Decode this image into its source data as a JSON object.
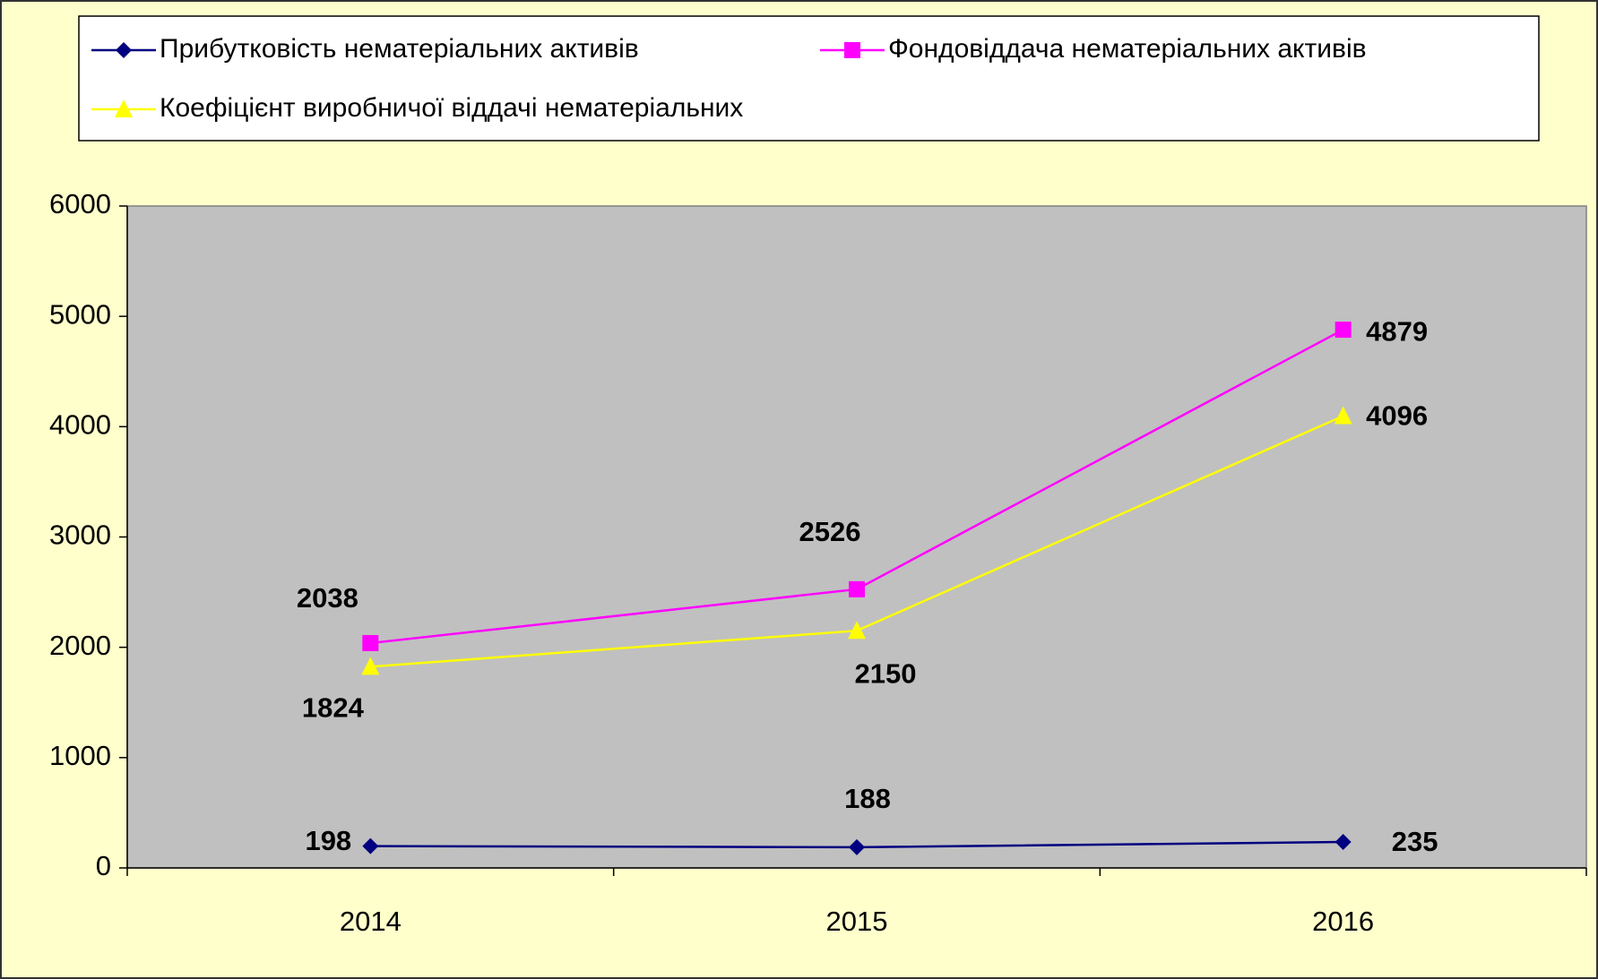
{
  "chart_data": {
    "type": "line",
    "categories": [
      "2014",
      "2015",
      "2016"
    ],
    "series": [
      {
        "name": "Прибутковість нематеріальних активів",
        "color": "#000080",
        "marker": "diamond",
        "values": [
          198,
          188,
          235
        ]
      },
      {
        "name": "Фондовіддача нематеріальних активів",
        "color": "#ff00ff",
        "marker": "square",
        "values": [
          2038,
          2526,
          4879
        ]
      },
      {
        "name": "Коефіцієнт виробничої віддачі нематеріальних",
        "color": "#ffff00",
        "marker": "triangle",
        "values": [
          1824,
          2150,
          4096
        ]
      }
    ],
    "ylim": [
      0,
      6000
    ],
    "yticks": [
      0,
      1000,
      2000,
      3000,
      4000,
      5000,
      6000
    ],
    "legend": "top",
    "data_labels": true,
    "plot_background": "#c0c0c0"
  }
}
